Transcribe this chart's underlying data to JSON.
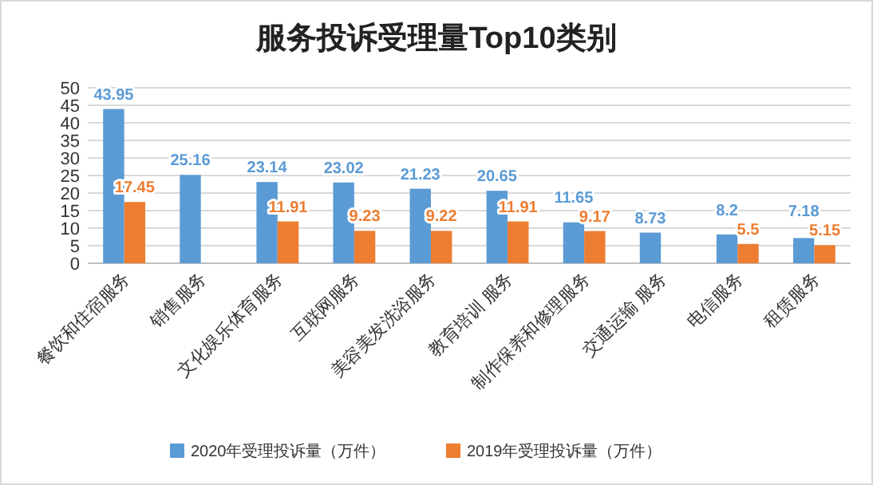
{
  "chart_data": {
    "type": "bar",
    "title": "服务投诉受理量Top10类别",
    "categories": [
      "餐饮和住宿服务",
      "销售服务",
      "文化娱乐体育服务",
      "互联网服务",
      "美容美发洗浴服务",
      "教育培训 服务",
      "制作保养和修理服务",
      "交通运输 服务",
      "电信服务",
      "租赁服务"
    ],
    "series": [
      {
        "name": "2020年受理投诉量（万件）",
        "color": "#5b9bd5",
        "values": [
          43.95,
          25.16,
          23.14,
          23.02,
          21.23,
          20.65,
          11.65,
          8.73,
          8.2,
          7.18
        ]
      },
      {
        "name": "2019年受理投诉量（万件）",
        "color": "#ed7d31",
        "values": [
          17.45,
          null,
          11.91,
          9.23,
          9.22,
          11.91,
          9.17,
          null,
          5.5,
          5.15
        ]
      }
    ],
    "ylim": [
      0,
      50
    ],
    "yticks": [
      0,
      5,
      10,
      15,
      20,
      25,
      30,
      35,
      40,
      45,
      50
    ],
    "grid": "y",
    "legend": "bottom",
    "data_labels": true
  }
}
